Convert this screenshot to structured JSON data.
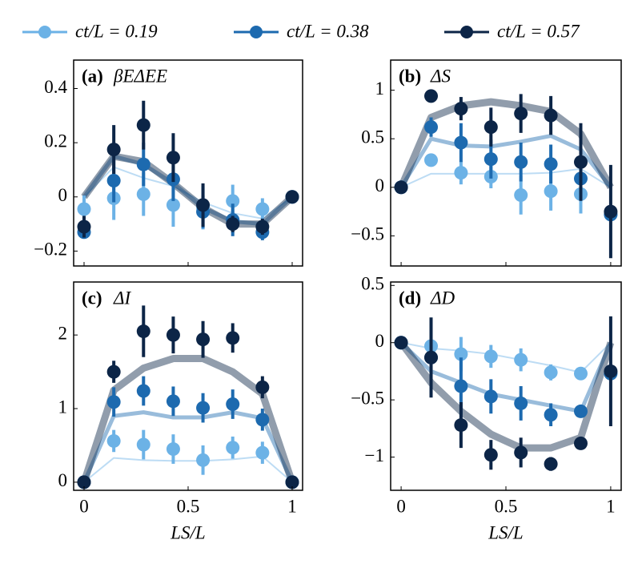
{
  "chart_data": [
    {
      "type": "errorbar",
      "tag": "(a)",
      "title": "βEΔEE",
      "x": [
        0,
        0.1429,
        0.2857,
        0.4286,
        0.5714,
        0.7143,
        0.8571,
        1
      ],
      "xlim": [
        -0.05,
        1.05
      ],
      "xticks": [
        0,
        0.5,
        1
      ],
      "ylim": [
        -0.255,
        0.505
      ],
      "yticks": [
        {
          "value": -0.2,
          "label": "−0.2"
        },
        0,
        0.2,
        0.4
      ],
      "series": [
        {
          "name": "ct/L = 0.19",
          "color": "#6cb2e6",
          "values": [
            -0.045,
            -0.005,
            0.01,
            -0.03,
            -0.04,
            -0.015,
            -0.045,
            0
          ],
          "errors": [
            0.05,
            0.08,
            0.08,
            0.08,
            0.08,
            0.06,
            0.04,
            0
          ],
          "theory": [
            0,
            0.11,
            0.07,
            0.04,
            -0.02,
            -0.06,
            -0.08,
            0
          ]
        },
        {
          "name": "ct/L = 0.38",
          "color": "#1d6aaf",
          "values": [
            -0.13,
            0.06,
            0.12,
            0.065,
            -0.055,
            -0.085,
            -0.13,
            0
          ],
          "errors": [
            0,
            0.08,
            0.08,
            0.08,
            0.06,
            0.06,
            0.03,
            0
          ],
          "theory": [
            0,
            0.15,
            0.12,
            0.05,
            -0.04,
            -0.09,
            -0.1,
            0
          ]
        },
        {
          "name": "ct/L = 0.57",
          "color": "#0c2547",
          "values": [
            -0.11,
            0.175,
            0.265,
            0.145,
            -0.03,
            -0.1,
            -0.11,
            0
          ],
          "errors": [
            0.04,
            0.09,
            0.09,
            0.09,
            0.08,
            0.03,
            0.03,
            0
          ],
          "theory": [
            0,
            0.15,
            0.13,
            0.05,
            -0.04,
            -0.1,
            -0.1,
            0
          ]
        }
      ]
    },
    {
      "type": "errorbar",
      "tag": "(b)",
      "title": "ΔS",
      "x": [
        0,
        0.1429,
        0.2857,
        0.4286,
        0.5714,
        0.7143,
        0.8571,
        1
      ],
      "xlim": [
        -0.05,
        1.05
      ],
      "xticks": [
        0,
        0.5,
        1
      ],
      "ylim": [
        -0.81,
        1.31
      ],
      "yticks": [
        {
          "value": -0.5,
          "label": "−0.5"
        },
        0,
        0.5,
        1
      ],
      "series": [
        {
          "color": "#6cb2e6",
          "values": [
            0,
            0.28,
            0.15,
            0.11,
            -0.08,
            -0.04,
            -0.07,
            -0.28
          ],
          "errors": [
            0,
            0.05,
            0.12,
            0.12,
            0.2,
            0.2,
            0.2,
            0
          ],
          "theory": [
            0,
            0.14,
            0.14,
            0.14,
            0.14,
            0.15,
            0.19,
            0
          ]
        },
        {
          "color": "#1d6aaf",
          "values": [
            0,
            0.62,
            0.46,
            0.29,
            0.26,
            0.24,
            0.09,
            -0.28
          ],
          "errors": [
            0,
            0.1,
            0.2,
            0.2,
            0.2,
            0.2,
            0.2,
            0
          ],
          "theory": [
            0,
            0.5,
            0.43,
            0.42,
            0.47,
            0.53,
            0.39,
            0
          ]
        },
        {
          "color": "#0c2547",
          "values": [
            0,
            0.94,
            0.81,
            0.62,
            0.76,
            0.74,
            0.26,
            -0.25
          ],
          "errors": [
            0,
            0,
            0.12,
            0.2,
            0.2,
            0.2,
            0.4,
            0.48
          ],
          "theory": [
            0,
            0.72,
            0.84,
            0.88,
            0.84,
            0.78,
            0.55,
            0
          ]
        }
      ]
    },
    {
      "type": "errorbar",
      "tag": "(c)",
      "title": "ΔI",
      "x_label": "LS/L",
      "x": [
        0,
        0.1429,
        0.2857,
        0.4286,
        0.5714,
        0.7143,
        0.8571,
        1
      ],
      "xlim": [
        -0.05,
        1.05
      ],
      "xticks": [
        0,
        0.5,
        1
      ],
      "ylim": [
        -0.11,
        2.72
      ],
      "yticks": [
        0,
        1,
        2
      ],
      "series": [
        {
          "color": "#6cb2e6",
          "values": [
            0,
            0.56,
            0.51,
            0.45,
            0.3,
            0.47,
            0.4,
            0
          ],
          "errors": [
            0,
            0.15,
            0.2,
            0.2,
            0.2,
            0.15,
            0.15,
            0
          ],
          "theory": [
            0,
            0.33,
            0.3,
            0.29,
            0.29,
            0.31,
            0.35,
            0
          ]
        },
        {
          "color": "#1d6aaf",
          "values": [
            0,
            1.09,
            1.24,
            1.1,
            1.01,
            1.06,
            0.85,
            0
          ],
          "errors": [
            0,
            0.2,
            0.2,
            0.2,
            0.2,
            0.2,
            0.15,
            0
          ],
          "theory": [
            0,
            0.9,
            0.95,
            0.88,
            0.88,
            0.95,
            0.87,
            0
          ]
        },
        {
          "color": "#0c2547",
          "values": [
            0,
            1.5,
            2.05,
            2.0,
            1.94,
            1.96,
            1.29,
            0
          ],
          "errors": [
            0,
            0.15,
            0.35,
            0.25,
            0.25,
            0.2,
            0.15,
            0
          ],
          "theory": [
            0,
            1.25,
            1.55,
            1.68,
            1.68,
            1.5,
            1.2,
            0
          ]
        }
      ]
    },
    {
      "type": "errorbar",
      "tag": "(d)",
      "title": "ΔD",
      "x_label": "LS/L",
      "x": [
        0,
        0.1429,
        0.2857,
        0.4286,
        0.5714,
        0.7143,
        0.8571,
        1
      ],
      "xlim": [
        -0.05,
        1.05
      ],
      "xticks": [
        0,
        0.5,
        1
      ],
      "ylim": [
        -1.29,
        0.53
      ],
      "yticks": [
        {
          "value": -1,
          "label": "−1"
        },
        {
          "value": -0.5,
          "label": "−0.5"
        },
        0,
        0.5
      ],
      "series": [
        {
          "color": "#6cb2e6",
          "values": [
            0,
            -0.03,
            -0.1,
            -0.12,
            -0.15,
            -0.26,
            -0.27,
            -0.26
          ],
          "errors": [
            0,
            0.2,
            0.15,
            0.1,
            0.1,
            0.07,
            0.05,
            0
          ],
          "theory": [
            0,
            -0.05,
            -0.07,
            -0.1,
            -0.15,
            -0.2,
            -0.26,
            0
          ]
        },
        {
          "color": "#1d6aaf",
          "values": [
            0,
            -0.13,
            -0.38,
            -0.47,
            -0.53,
            -0.63,
            -0.6,
            -0.27
          ],
          "errors": [
            0,
            0.3,
            0.25,
            0.15,
            0.15,
            0.1,
            0,
            0
          ],
          "theory": [
            0,
            -0.25,
            -0.35,
            -0.45,
            -0.5,
            -0.55,
            -0.6,
            0
          ]
        },
        {
          "color": "#0c2547",
          "values": [
            0,
            -0.13,
            -0.72,
            -0.98,
            -0.96,
            -1.06,
            -0.88,
            -0.25
          ],
          "errors": [
            0,
            0.35,
            0.2,
            0.13,
            0.13,
            0.06,
            0,
            0.48
          ],
          "theory": [
            0,
            -0.35,
            -0.6,
            -0.8,
            -0.92,
            -0.92,
            -0.83,
            0
          ]
        }
      ]
    }
  ]
}
